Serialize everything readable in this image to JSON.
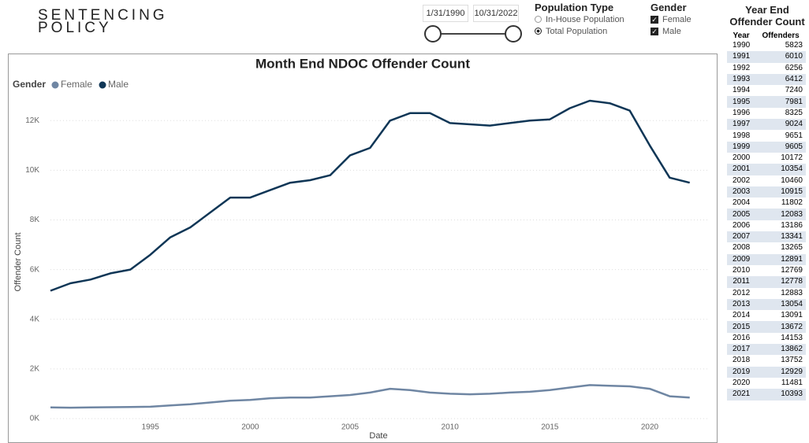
{
  "header": {
    "line1": "SENTENCING",
    "line2": "POLICY"
  },
  "date_filter": {
    "start": "1/31/1990",
    "end": "10/31/2022"
  },
  "population_type": {
    "title": "Population Type",
    "options": [
      "In-House Population",
      "Total Population"
    ],
    "selected": 1
  },
  "gender_filter": {
    "title": "Gender",
    "options": [
      "Female",
      "Male"
    ],
    "checked": [
      true,
      true
    ]
  },
  "table": {
    "title": "Year End Offender Count",
    "columns": [
      "Year",
      "Offenders"
    ],
    "rows": [
      [
        1990,
        5823
      ],
      [
        1991,
        6010
      ],
      [
        1992,
        6256
      ],
      [
        1993,
        6412
      ],
      [
        1994,
        7240
      ],
      [
        1995,
        7981
      ],
      [
        1996,
        8325
      ],
      [
        1997,
        9024
      ],
      [
        1998,
        9651
      ],
      [
        1999,
        9605
      ],
      [
        2000,
        10172
      ],
      [
        2001,
        10354
      ],
      [
        2002,
        10460
      ],
      [
        2003,
        10915
      ],
      [
        2004,
        11802
      ],
      [
        2005,
        12083
      ],
      [
        2006,
        13186
      ],
      [
        2007,
        13341
      ],
      [
        2008,
        13265
      ],
      [
        2009,
        12891
      ],
      [
        2010,
        12769
      ],
      [
        2011,
        12778
      ],
      [
        2012,
        12883
      ],
      [
        2013,
        13054
      ],
      [
        2014,
        13091
      ],
      [
        2015,
        13672
      ],
      [
        2016,
        14153
      ],
      [
        2017,
        13862
      ],
      [
        2018,
        13752
      ],
      [
        2019,
        12929
      ],
      [
        2020,
        11481
      ],
      [
        2021,
        10393
      ]
    ]
  },
  "chart_data": {
    "type": "line",
    "title": "Month End NDOC Offender Count",
    "x_label": "Date",
    "y_label": "Offender Count",
    "legend_title": "Gender",
    "x": [
      1990,
      1991,
      1992,
      1993,
      1994,
      1995,
      1996,
      1997,
      1998,
      1999,
      2000,
      2001,
      2002,
      2003,
      2004,
      2005,
      2006,
      2007,
      2008,
      2009,
      2010,
      2011,
      2012,
      2013,
      2014,
      2015,
      2016,
      2017,
      2018,
      2019,
      2020,
      2021,
      2022
    ],
    "series": [
      {
        "name": "Female",
        "color": "#6f86a3",
        "values": [
          450,
          440,
          450,
          460,
          470,
          480,
          530,
          580,
          650,
          720,
          750,
          820,
          850,
          850,
          900,
          950,
          1050,
          1200,
          1150,
          1050,
          1000,
          980,
          1000,
          1050,
          1080,
          1150,
          1250,
          1350,
          1320,
          1300,
          1200,
          900,
          850
        ]
      },
      {
        "name": "Male",
        "color": "#0f3656",
        "values": [
          5150,
          5450,
          5600,
          5850,
          6000,
          6600,
          7300,
          7700,
          8300,
          8900,
          8900,
          9200,
          9500,
          9600,
          9800,
          10600,
          10900,
          12000,
          12300,
          12300,
          11900,
          11850,
          11800,
          11900,
          12000,
          12050,
          12500,
          12800,
          12700,
          12400,
          11000,
          9700,
          9500
        ]
      }
    ],
    "xlim": [
      1990,
      2023
    ],
    "xticks": [
      1995,
      2000,
      2005,
      2010,
      2015,
      2020
    ],
    "ylim": [
      0,
      12800
    ],
    "yticks": [
      {
        "value": 0,
        "label": "0K"
      },
      {
        "value": 2000,
        "label": "2K"
      },
      {
        "value": 4000,
        "label": "4K"
      },
      {
        "value": 6000,
        "label": "6K"
      },
      {
        "value": 8000,
        "label": "8K"
      },
      {
        "value": 10000,
        "label": "10K"
      },
      {
        "value": 12000,
        "label": "12K"
      }
    ],
    "grid": true
  }
}
